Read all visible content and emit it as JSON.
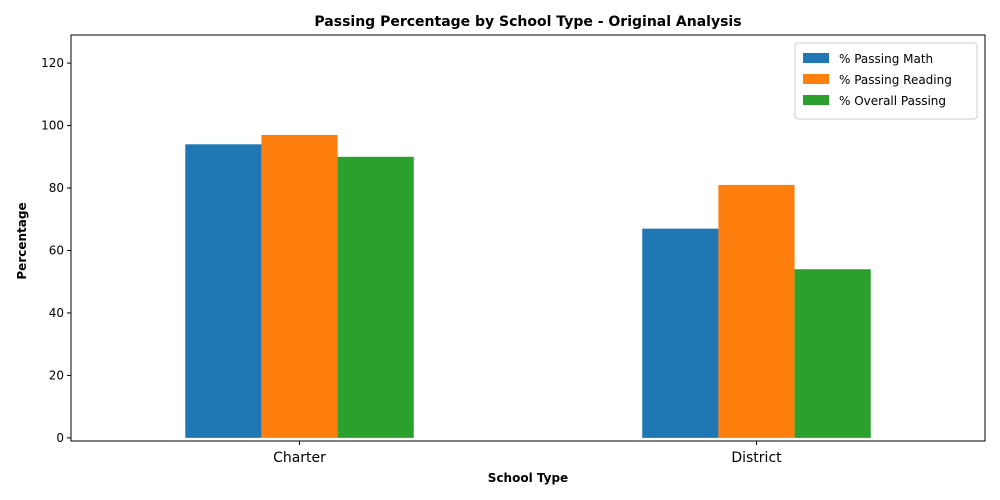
{
  "chart_data": {
    "type": "bar",
    "title": "Passing Percentage by School Type - Original Analysis",
    "xlabel": "School Type",
    "ylabel": "Percentage",
    "categories": [
      "Charter",
      "District"
    ],
    "series": [
      {
        "name": "% Passing Math",
        "color": "#1f77b4",
        "values": [
          94,
          67
        ]
      },
      {
        "name": "% Passing Reading",
        "color": "#ff7f0e",
        "values": [
          97,
          81
        ]
      },
      {
        "name": "% Overall Passing",
        "color": "#2ca02c",
        "values": [
          90,
          54
        ]
      }
    ],
    "ylim": [
      -1,
      129
    ],
    "yticks": [
      0,
      20,
      40,
      60,
      80,
      100,
      120
    ],
    "grid": false,
    "legend_position": "top-right"
  }
}
